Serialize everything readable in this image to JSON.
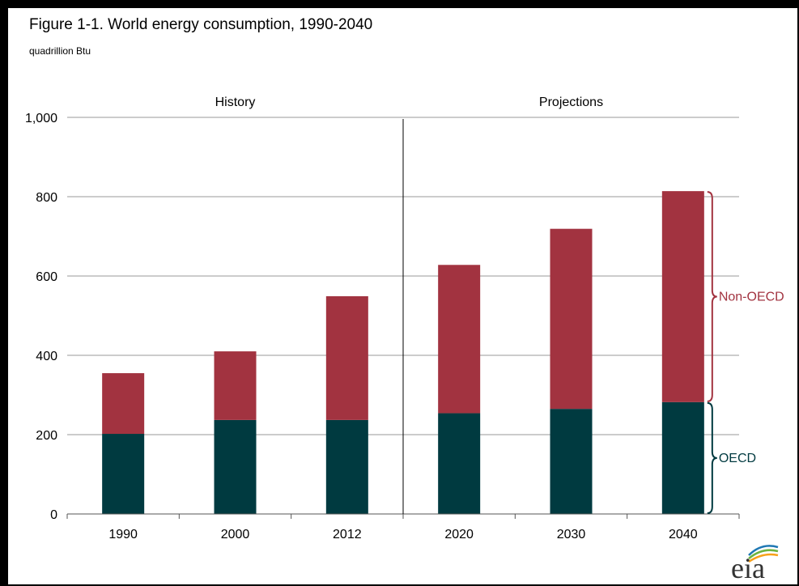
{
  "chart_data": {
    "type": "bar",
    "stacked": true,
    "title": "Figure 1-1. World energy consumption, 1990-2040",
    "subtitle": "quadrillion Btu",
    "categories": [
      "1990",
      "2000",
      "2012",
      "2020",
      "2030",
      "2040"
    ],
    "series": [
      {
        "name": "OECD",
        "color": "#003a40",
        "values": [
          202,
          237,
          237,
          254,
          265,
          282
        ]
      },
      {
        "name": "Non-OECD",
        "color": "#a23340",
        "values": [
          153,
          173,
          312,
          374,
          454,
          532
        ]
      }
    ],
    "ylim": [
      0,
      1000
    ],
    "yticks": [
      "0",
      "200",
      "400",
      "600",
      "800",
      "1,000"
    ],
    "ytick_values": [
      0,
      200,
      400,
      600,
      800,
      1000
    ],
    "grid": true,
    "sections": [
      {
        "label": "History",
        "categories": [
          "1990",
          "2000",
          "2012"
        ]
      },
      {
        "label": "Projections",
        "categories": [
          "2020",
          "2030",
          "2040"
        ]
      }
    ],
    "bracket_annotations": [
      {
        "label": "Non-OECD",
        "color": "#a23340",
        "category": "2040",
        "series": "Non-OECD"
      },
      {
        "label": "OECD",
        "color": "#003a40",
        "category": "2040",
        "series": "OECD"
      }
    ]
  },
  "logo": {
    "text": "eia",
    "icon": "eia-logo-icon"
  }
}
